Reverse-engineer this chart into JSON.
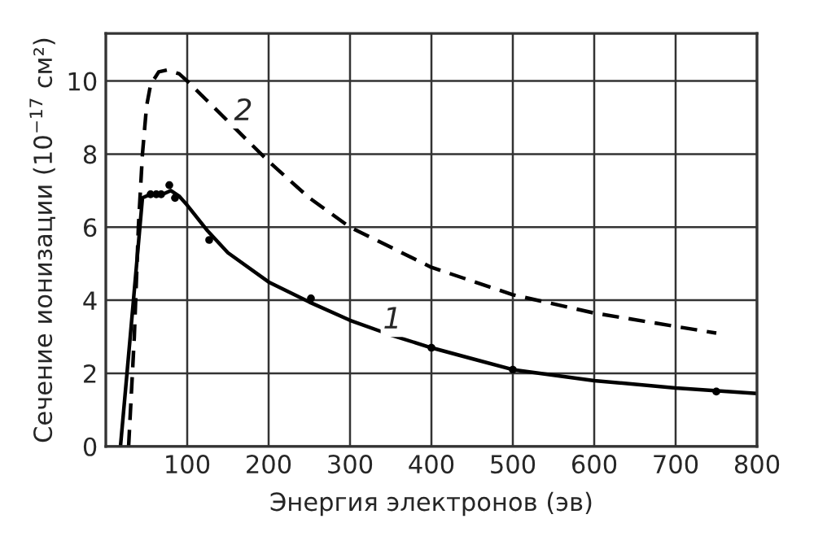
{
  "chart_data": {
    "type": "line",
    "xlabel": "Энергия электронов (эв)",
    "ylabel": "Сечение ионизации (10$^{−17}$ см²)",
    "xlim": [
      0,
      800
    ],
    "xticks": [
      100,
      200,
      300,
      400,
      500,
      600,
      700,
      800
    ],
    "ylim": [
      0,
      11.3
    ],
    "yticks": [
      0,
      2,
      4,
      6,
      8,
      10
    ],
    "grid": true,
    "legend": false,
    "series": [
      {
        "color": "#000000",
        "line_style": "solid",
        "x": [
          18,
          30,
          45,
          55,
          70,
          80,
          90,
          100,
          125,
          150,
          200,
          250,
          300,
          350,
          400,
          450,
          500,
          600,
          700,
          800
        ],
        "values": [
          0,
          3,
          6.8,
          6.9,
          6.9,
          7.0,
          6.85,
          6.6,
          5.9,
          5.3,
          4.5,
          3.95,
          3.45,
          3.05,
          2.7,
          2.4,
          2.1,
          1.8,
          1.6,
          1.45
        ]
      },
      {
        "color": "#000000",
        "line_style": "dashed",
        "x": [
          28,
          35,
          40,
          45,
          50,
          55,
          65,
          75,
          90,
          100,
          150,
          200,
          250,
          300,
          400,
          500,
          600,
          750
        ],
        "values": [
          0,
          3,
          6,
          8,
          9.3,
          9.9,
          10.25,
          10.3,
          10.2,
          10.0,
          8.9,
          7.8,
          6.8,
          6.0,
          4.9,
          4.15,
          3.65,
          3.1
        ]
      },
      {
        "type": "scatter",
        "color": "#000000",
        "marker": "circle",
        "x": [
          55,
          62,
          68,
          78,
          85,
          127,
          252,
          400,
          500,
          750
        ],
        "values": [
          6.9,
          6.9,
          6.9,
          7.15,
          6.8,
          5.65,
          4.05,
          2.7,
          2.1,
          1.5
        ]
      }
    ],
    "annotations": [
      {
        "text": "1",
        "x": 352,
        "y": 3.45
      },
      {
        "text": "2",
        "x": 169,
        "y": 9.15
      }
    ]
  }
}
